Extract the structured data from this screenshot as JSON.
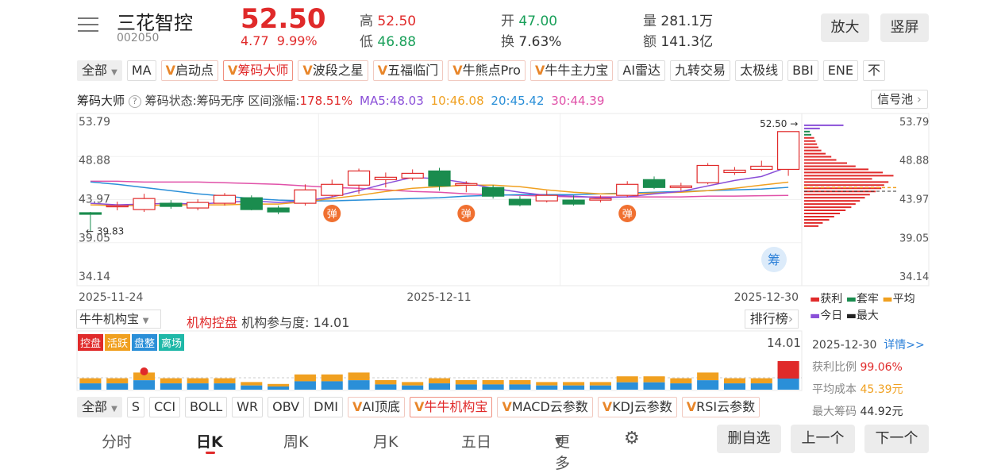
{
  "header": {
    "stock_name": "三花智控",
    "stock_code": "002050",
    "price": "52.50",
    "change": "4.77",
    "change_pct": "9.99%",
    "high_label": "高",
    "high": "52.50",
    "low_label": "低",
    "low": "46.88",
    "open_label": "开",
    "open": "47.00",
    "turnover_label": "换",
    "turnover": "7.63%",
    "volume_label": "量",
    "volume": "281.1万",
    "amount_label": "额",
    "amount": "141.3亿",
    "zoom_button": "放大",
    "portrait_button": "竖屏"
  },
  "indicator_tabs": {
    "all": "全部",
    "items": [
      "MA",
      "启动点",
      "筹码大师",
      "波段之星",
      "五福临门",
      "牛熊点Pro",
      "牛牛主力宝",
      "AI雷达",
      "九转交易",
      "太极线",
      "BBI",
      "ENE",
      "不"
    ]
  },
  "main_info": {
    "name": "筹码大师",
    "status": "筹码状态:筹码无序",
    "range_change": "区间涨幅:",
    "range_change_value": "178.51%",
    "ma5": "MA5:48.03",
    "ma10": "10:46.08",
    "ma20": "20:45.42",
    "ma30": "30:44.39",
    "signal_pool": "信号池"
  },
  "chart_data": {
    "type": "candlestick",
    "y_ticks": [
      "53.79",
      "48.88",
      "43.97",
      "39.05",
      "34.14"
    ],
    "ylim": [
      34.14,
      53.79
    ],
    "x_labels": [
      "2025-11-24",
      "2025-12-11",
      "2025-12-30"
    ],
    "last_price_marker": "52.50",
    "low_marker": "39.83",
    "bounce_label": "弹",
    "chips_label": "筹",
    "candles": [
      {
        "o": 42.2,
        "c": 42.0,
        "h": 42.3,
        "l": 39.83
      },
      {
        "o": 43.0,
        "c": 43.1,
        "h": 43.6,
        "l": 42.5
      },
      {
        "o": 42.6,
        "c": 44.0,
        "h": 44.6,
        "l": 42.3
      },
      {
        "o": 43.4,
        "c": 43.0,
        "h": 43.8,
        "l": 42.7
      },
      {
        "o": 42.8,
        "c": 43.5,
        "h": 43.9,
        "l": 42.5
      },
      {
        "o": 43.4,
        "c": 44.4,
        "h": 44.7,
        "l": 43.1
      },
      {
        "o": 44.1,
        "c": 42.6,
        "h": 44.4,
        "l": 42.5
      },
      {
        "o": 42.8,
        "c": 42.3,
        "h": 43.1,
        "l": 42.0
      },
      {
        "o": 43.4,
        "c": 45.1,
        "h": 45.8,
        "l": 43.1
      },
      {
        "o": 44.4,
        "c": 45.8,
        "h": 46.4,
        "l": 44.2
      },
      {
        "o": 45.7,
        "c": 47.5,
        "h": 47.8,
        "l": 44.6
      },
      {
        "o": 46.4,
        "c": 46.7,
        "h": 47.3,
        "l": 45.4
      },
      {
        "o": 46.6,
        "c": 47.2,
        "h": 47.7,
        "l": 46.3
      },
      {
        "o": 47.5,
        "c": 45.6,
        "h": 47.9,
        "l": 45.0
      },
      {
        "o": 45.7,
        "c": 45.9,
        "h": 46.2,
        "l": 44.8
      },
      {
        "o": 45.4,
        "c": 44.3,
        "h": 45.7,
        "l": 44.0
      },
      {
        "o": 43.9,
        "c": 43.2,
        "h": 44.3,
        "l": 43.0
      },
      {
        "o": 43.7,
        "c": 44.4,
        "h": 45.0,
        "l": 43.5
      },
      {
        "o": 43.8,
        "c": 43.3,
        "h": 44.4,
        "l": 43.1
      },
      {
        "o": 43.8,
        "c": 44.0,
        "h": 44.4,
        "l": 43.5
      },
      {
        "o": 44.4,
        "c": 45.8,
        "h": 46.2,
        "l": 44.2
      },
      {
        "o": 46.4,
        "c": 45.4,
        "h": 46.8,
        "l": 45.2
      },
      {
        "o": 45.4,
        "c": 45.6,
        "h": 46.0,
        "l": 45.0
      },
      {
        "o": 46.0,
        "c": 48.2,
        "h": 48.5,
        "l": 45.8
      },
      {
        "o": 47.3,
        "c": 47.6,
        "h": 48.0,
        "l": 47.0
      },
      {
        "o": 47.7,
        "c": 48.1,
        "h": 48.8,
        "l": 47.5
      },
      {
        "o": 47.7,
        "c": 52.5,
        "h": 52.5,
        "l": 46.88
      }
    ],
    "ma5": [
      43.4,
      43.2,
      43.3,
      43.4,
      43.3,
      43.5,
      43.7,
      43.5,
      43.7,
      44.2,
      45.0,
      45.9,
      46.7,
      46.5,
      46.0,
      45.3,
      44.8,
      44.4,
      44.3,
      44.1,
      44.2,
      44.6,
      44.9,
      45.6,
      46.3,
      46.8,
      48.03
    ],
    "ma10": [
      43.2,
      43.1,
      43.1,
      43.2,
      43.2,
      43.2,
      43.3,
      43.3,
      43.6,
      44.0,
      44.4,
      44.9,
      45.3,
      45.5,
      45.7,
      45.7,
      45.5,
      45.1,
      44.8,
      44.6,
      44.6,
      44.7,
      44.8,
      45.0,
      45.3,
      45.7,
      46.08
    ],
    "ma20": [
      46.1,
      45.8,
      45.4,
      45.0,
      44.6,
      44.3,
      44.0,
      43.8,
      43.7,
      43.7,
      43.8,
      43.9,
      44.0,
      44.1,
      44.3,
      44.4,
      44.5,
      44.5,
      44.5,
      44.6,
      44.7,
      44.8,
      44.9,
      45.0,
      45.1,
      45.2,
      45.42
    ],
    "ma30": [
      46.2,
      46.2,
      46.1,
      46.1,
      46.1,
      46.0,
      45.9,
      45.8,
      45.6,
      45.4,
      45.3,
      45.1,
      44.9,
      44.8,
      44.6,
      44.5,
      44.4,
      44.3,
      44.2,
      44.2,
      44.2,
      44.2,
      44.2,
      44.3,
      44.3,
      44.35,
      44.39
    ]
  },
  "chips_legend": {
    "profit": "获利",
    "trapped": "套牢",
    "average": "平均",
    "today": "今日",
    "max": "最大"
  },
  "sub_panel": {
    "selector": "牛牛机构宝",
    "name": "机构控盘",
    "participation": "机构参与度: 14.01",
    "ranking": "排行榜",
    "badges": [
      "控盘",
      "活跃",
      "盘整",
      "离场"
    ],
    "value": "14.01"
  },
  "chip_stats": {
    "date": "2025-12-30",
    "details": "详情>>",
    "profit_ratio_label": "获利比例",
    "profit_ratio": "99.06%",
    "avg_cost_label": "平均成本",
    "avg_cost": "45.39元",
    "max_chip_label": "最大筹码",
    "max_chip": "44.92元"
  },
  "bottom_tabs": {
    "all": "全部",
    "items": [
      "S",
      "CCI",
      "BOLL",
      "WR",
      "OBV",
      "DMI",
      "AI顶底",
      "牛牛机构宝",
      "MACD云参数",
      "KDJ云参数",
      "RSI云参数"
    ]
  },
  "nav": {
    "items": [
      "分时",
      "日K",
      "周K",
      "月K",
      "五日",
      "更多"
    ],
    "delete_watch": "删自选",
    "prev": "上一个",
    "next": "下一个"
  },
  "colors": {
    "up": "#e02a2a",
    "down": "#1a8c4e",
    "ma5": "#8a4fd8",
    "ma10": "#f0a020",
    "ma20": "#2a8fd8",
    "ma30": "#e050a8"
  }
}
